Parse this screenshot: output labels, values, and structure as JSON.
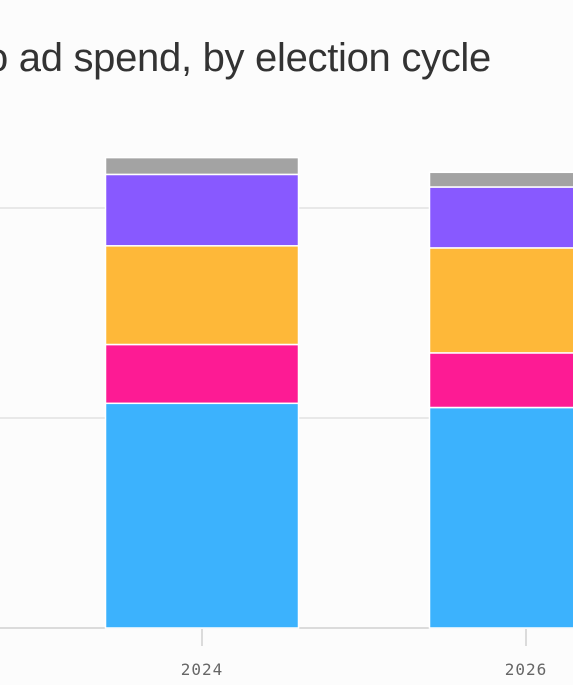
{
  "title": "o ad spend, by election cycle",
  "chart_data": {
    "type": "bar",
    "stacked": true,
    "categories": [
      "2024",
      "2026"
    ],
    "series": [
      {
        "color": "#3cb2fd",
        "values": [
          107,
          105
        ]
      },
      {
        "color": "#fd1b94",
        "values": [
          28,
          26
        ]
      },
      {
        "color": "#feb839",
        "values": [
          47,
          50
        ]
      },
      {
        "color": "#8859ff",
        "values": [
          34,
          29
        ]
      },
      {
        "color": "#a3a3a3",
        "values": [
          8,
          7
        ]
      }
    ],
    "ylim": [
      0,
      224
    ],
    "gridlines": [
      0,
      100,
      200
    ],
    "grid": true,
    "legend": false,
    "xlabel": "",
    "ylabel": ""
  }
}
